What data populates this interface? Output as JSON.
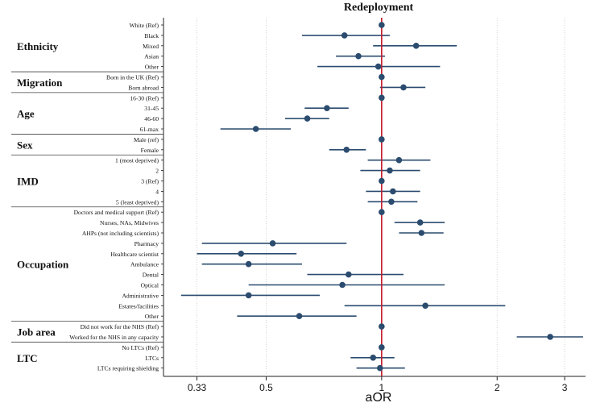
{
  "chart_data": {
    "type": "forest",
    "title": "Redeployment",
    "xlabel": "aOR",
    "xscale": "log",
    "xlim": [
      0.27,
      3.4
    ],
    "xticks": [
      {
        "value": 0.33,
        "label": "0.33"
      },
      {
        "value": 0.5,
        "label": "0.5"
      },
      {
        "value": 1,
        "label": "1"
      },
      {
        "value": 2,
        "label": "2"
      },
      {
        "value": 3,
        "label": "3"
      }
    ],
    "reference_line": 1,
    "colors": {
      "point": "#2b4c6f",
      "ci": "#2b4c6f",
      "refline": "#c0192a",
      "grid": "#c8c8c8",
      "text": "#111111"
    },
    "groups": [
      {
        "name": "Ethnicity",
        "rows": [
          {
            "label": "White (Ref)",
            "aor": 1.0,
            "lo": 1.0,
            "hi": 1.0
          },
          {
            "label": "Black",
            "aor": 0.8,
            "lo": 0.62,
            "hi": 1.05
          },
          {
            "label": "Mixed",
            "aor": 1.23,
            "lo": 0.95,
            "hi": 1.57
          },
          {
            "label": "Asian",
            "aor": 0.87,
            "lo": 0.76,
            "hi": 1.02
          },
          {
            "label": "Other",
            "aor": 0.98,
            "lo": 0.68,
            "hi": 1.42
          }
        ]
      },
      {
        "name": "Migration",
        "rows": [
          {
            "label": "Born in the UK (Ref)",
            "aor": 1.0,
            "lo": 1.0,
            "hi": 1.0
          },
          {
            "label": "Born abroad",
            "aor": 1.14,
            "lo": 0.99,
            "hi": 1.3
          }
        ]
      },
      {
        "name": "Age",
        "rows": [
          {
            "label": "16-30 (Ref)",
            "aor": 1.0,
            "lo": 1.0,
            "hi": 1.0
          },
          {
            "label": "31-45",
            "aor": 0.72,
            "lo": 0.63,
            "hi": 0.82
          },
          {
            "label": "46-60",
            "aor": 0.64,
            "lo": 0.56,
            "hi": 0.73
          },
          {
            "label": "61-max",
            "aor": 0.47,
            "lo": 0.38,
            "hi": 0.58
          }
        ]
      },
      {
        "name": "Sex",
        "rows": [
          {
            "label": "Male (ref)",
            "aor": 1.0,
            "lo": 1.0,
            "hi": 1.0
          },
          {
            "label": "Female",
            "aor": 0.81,
            "lo": 0.73,
            "hi": 0.91
          }
        ]
      },
      {
        "name": "IMD",
        "rows": [
          {
            "label": "1 (most deprived)",
            "aor": 1.11,
            "lo": 0.92,
            "hi": 1.34
          },
          {
            "label": "2",
            "aor": 1.05,
            "lo": 0.88,
            "hi": 1.26
          },
          {
            "label": "3 (Ref)",
            "aor": 1.0,
            "lo": 1.0,
            "hi": 1.0
          },
          {
            "label": "4",
            "aor": 1.07,
            "lo": 0.91,
            "hi": 1.26
          },
          {
            "label": "5 (least deprived)",
            "aor": 1.06,
            "lo": 0.92,
            "hi": 1.24
          }
        ]
      },
      {
        "name": "Occupation",
        "rows": [
          {
            "label": "Doctors and medical support (Ref)",
            "aor": 1.0,
            "lo": 1.0,
            "hi": 1.0
          },
          {
            "label": "Nurses, NAs, Midwives",
            "aor": 1.26,
            "lo": 1.08,
            "hi": 1.46
          },
          {
            "label": "AHPs (not including scientists)",
            "aor": 1.27,
            "lo": 1.11,
            "hi": 1.45
          },
          {
            "label": "Pharmacy",
            "aor": 0.52,
            "lo": 0.34,
            "hi": 0.81
          },
          {
            "label": "Healthcare scientist",
            "aor": 0.43,
            "lo": 0.33,
            "hi": 0.6
          },
          {
            "label": "Ambulance",
            "aor": 0.45,
            "lo": 0.34,
            "hi": 0.62
          },
          {
            "label": "Dental",
            "aor": 0.82,
            "lo": 0.64,
            "hi": 1.14
          },
          {
            "label": "Optical",
            "aor": 0.79,
            "lo": 0.45,
            "hi": 1.46
          },
          {
            "label": "Administrative",
            "aor": 0.45,
            "lo": 0.3,
            "hi": 0.69
          },
          {
            "label": "Estates/facilities",
            "aor": 1.3,
            "lo": 0.8,
            "hi": 2.1
          },
          {
            "label": "Other",
            "aor": 0.61,
            "lo": 0.42,
            "hi": 0.86
          }
        ]
      },
      {
        "name": "Job area",
        "rows": [
          {
            "label": "Did not work for the NHS (Ref)",
            "aor": 1.0,
            "lo": 1.0,
            "hi": 1.0
          },
          {
            "label": "Worked for the NHS in any capacity",
            "aor": 2.75,
            "lo": 2.25,
            "hi": 3.35
          }
        ]
      },
      {
        "name": "LTC",
        "rows": [
          {
            "label": "No LTCs (Ref)",
            "aor": 1.0,
            "lo": 1.0,
            "hi": 1.0
          },
          {
            "label": "LTCs",
            "aor": 0.95,
            "lo": 0.83,
            "hi": 1.08
          },
          {
            "label": "LTCs requiring shielding",
            "aor": 0.99,
            "lo": 0.86,
            "hi": 1.15
          }
        ]
      }
    ]
  }
}
